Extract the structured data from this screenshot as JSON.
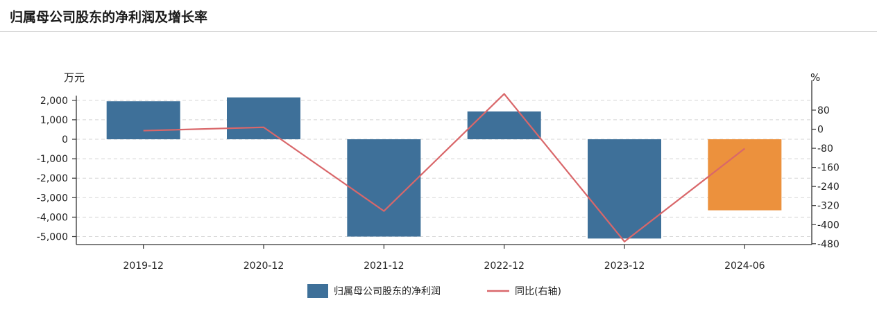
{
  "header": {
    "title": "归属母公司股东的净利润及增长率"
  },
  "colors": {
    "bar_primary": "#3e7099",
    "bar_highlight": "#ec913d",
    "line": "#d9676a",
    "grid": "#d5d5d5",
    "axis": "#333333"
  },
  "chart_data": {
    "type": "bar",
    "categories": [
      "2019-12",
      "2020-12",
      "2021-12",
      "2022-12",
      "2023-12",
      "2024-06"
    ],
    "series": [
      {
        "name": "归属母公司股东的净利润",
        "type": "bar",
        "axis": "left",
        "values": [
          1950,
          2150,
          -5000,
          1430,
          -5100,
          -3650
        ],
        "highlight_index": 5
      },
      {
        "name": "同比(右轴)",
        "type": "line",
        "axis": "right",
        "values": [
          -6,
          8,
          -343,
          148,
          -471,
          -81
        ]
      }
    ],
    "left_axis": {
      "unit": "万元",
      "ylim": [
        -5200,
        2150
      ],
      "ticks": [
        2000,
        1000,
        0,
        -1000,
        -2000,
        -3000,
        -4000,
        -5000
      ],
      "tick_labels": [
        "2,000",
        "1,000",
        "0",
        "-1,000",
        "-2,000",
        "-3,000",
        "-4,000",
        "-5,000"
      ]
    },
    "right_axis": {
      "unit": "%",
      "ylim": [
        -488,
        128
      ],
      "ticks": [
        80,
        0,
        -80,
        -160,
        -240,
        -320,
        -400,
        -480
      ],
      "tick_labels": [
        "80",
        "0",
        "-80",
        "-160",
        "-240",
        "-320",
        "-400",
        "-480"
      ]
    },
    "grid": true,
    "legend_position": "bottom",
    "legend": [
      "归属母公司股东的净利润",
      "同比(右轴)"
    ]
  }
}
